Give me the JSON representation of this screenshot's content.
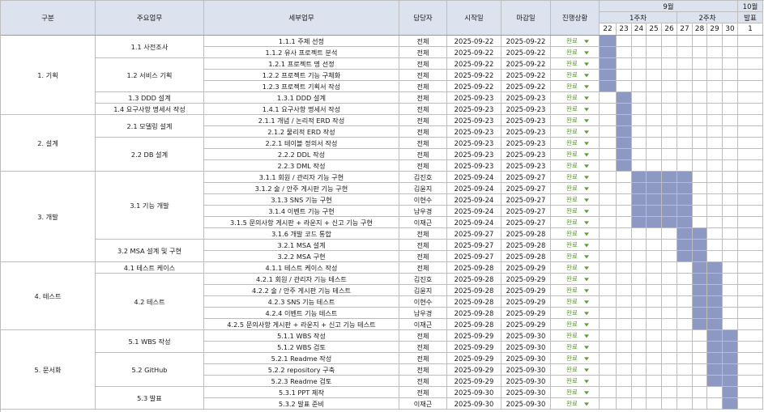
{
  "headers": {
    "category": "구분",
    "main_task": "주요업무",
    "detail_task": "세부업무",
    "owner": "담당자",
    "start": "시작일",
    "end": "마감일",
    "status": "진행상황",
    "month_sep": "9월",
    "month_oct": "10월",
    "week1": "1주차",
    "week2": "2주차",
    "release": "발표"
  },
  "days": [
    "22",
    "23",
    "24",
    "25",
    "26",
    "27",
    "28",
    "29",
    "30",
    "1"
  ],
  "bar_color": "#8e99c3",
  "status_color": "#5a9e2f",
  "categories": [
    {
      "label": "1. 기획",
      "first": 0,
      "count": 7
    },
    {
      "label": "2. 설계",
      "first": 7,
      "count": 5
    },
    {
      "label": "3. 개발",
      "first": 12,
      "count": 8
    },
    {
      "label": "4. 테스트",
      "first": 20,
      "count": 6
    },
    {
      "label": "5. 문서화",
      "first": 26,
      "count": 7
    }
  ],
  "main_tasks": [
    {
      "label": "1.1 사전조사",
      "first": 0,
      "count": 2
    },
    {
      "label": "1.2 서비스 기획",
      "first": 2,
      "count": 3
    },
    {
      "label": "1.3 DDD 설계",
      "first": 5,
      "count": 1
    },
    {
      "label": "1.4 요구사항 명세서 작성",
      "first": 6,
      "count": 1
    },
    {
      "label": "2.1 모델링 설계",
      "first": 7,
      "count": 2
    },
    {
      "label": "2.2 DB 설계",
      "first": 9,
      "count": 3
    },
    {
      "label": "3.1 기능 개발",
      "first": 12,
      "count": 6
    },
    {
      "label": "3.2 MSA 설계 및 구현",
      "first": 18,
      "count": 2
    },
    {
      "label": "4.1 테스트 케이스",
      "first": 20,
      "count": 1
    },
    {
      "label": "4.2 테스트",
      "first": 21,
      "count": 5
    },
    {
      "label": "5.1 WBS 작성",
      "first": 26,
      "count": 2
    },
    {
      "label": "5.2 GitHub",
      "first": 28,
      "count": 3
    },
    {
      "label": "5.3 발표",
      "first": 31,
      "count": 2
    }
  ],
  "rows": [
    {
      "detail": "1.1.1 주제 선정",
      "owner": "전체",
      "start": "2025-09-22",
      "end": "2025-09-22",
      "status": "완료",
      "bar": [
        0,
        0
      ]
    },
    {
      "detail": "1.1.2 유사 프로젝트 분석",
      "owner": "전체",
      "start": "2025-09-22",
      "end": "2025-09-22",
      "status": "완료",
      "bar": [
        0,
        0
      ]
    },
    {
      "detail": "1.2.1 프로젝트 명 선정",
      "owner": "전체",
      "start": "2025-09-22",
      "end": "2025-09-22",
      "status": "완료",
      "bar": [
        0,
        0
      ]
    },
    {
      "detail": "1.2.2 프로젝트 기능 구체화",
      "owner": "전체",
      "start": "2025-09-22",
      "end": "2025-09-22",
      "status": "완료",
      "bar": [
        0,
        0
      ]
    },
    {
      "detail": "1.2.3 프로젝트 기획서 작성",
      "owner": "전체",
      "start": "2025-09-22",
      "end": "2025-09-22",
      "status": "완료",
      "bar": [
        0,
        0
      ]
    },
    {
      "detail": "1.3.1 DDD 설계",
      "owner": "전체",
      "start": "2025-09-23",
      "end": "2025-09-23",
      "status": "완료",
      "bar": [
        1,
        1
      ]
    },
    {
      "detail": "1.4.1 요구사항 명세서 작성",
      "owner": "전체",
      "start": "2025-09-23",
      "end": "2025-09-23",
      "status": "완료",
      "bar": [
        1,
        1
      ]
    },
    {
      "detail": "2.1.1 개념 / 논리적 ERD 작성",
      "owner": "전체",
      "start": "2025-09-23",
      "end": "2025-09-23",
      "status": "완료",
      "bar": [
        1,
        1
      ]
    },
    {
      "detail": "2.1.2 물리적 ERD 작성",
      "owner": "전체",
      "start": "2025-09-23",
      "end": "2025-09-23",
      "status": "완료",
      "bar": [
        1,
        1
      ]
    },
    {
      "detail": "2.2.1 테이블 정의서 작성",
      "owner": "전체",
      "start": "2025-09-23",
      "end": "2025-09-23",
      "status": "완료",
      "bar": [
        1,
        1
      ]
    },
    {
      "detail": "2.2.2 DDL 작성",
      "owner": "전체",
      "start": "2025-09-23",
      "end": "2025-09-23",
      "status": "완료",
      "bar": [
        1,
        1
      ]
    },
    {
      "detail": "2.2.3 DML 작성",
      "owner": "전체",
      "start": "2025-09-23",
      "end": "2025-09-23",
      "status": "완료",
      "bar": [
        1,
        1
      ]
    },
    {
      "detail": "3.1.1 회원 / 관리자 기능 구현",
      "owner": "김진호",
      "start": "2025-09-24",
      "end": "2025-09-27",
      "status": "완료",
      "bar": [
        2,
        5
      ]
    },
    {
      "detail": "3.1.2 술 / 안주 게시판 기능 구현",
      "owner": "김윤지",
      "start": "2025-09-24",
      "end": "2025-09-27",
      "status": "완료",
      "bar": [
        2,
        5
      ]
    },
    {
      "detail": "3.1.3 SNS 기능 구현",
      "owner": "이현수",
      "start": "2025-09-24",
      "end": "2025-09-27",
      "status": "완료",
      "bar": [
        2,
        5
      ]
    },
    {
      "detail": "3.1.4 이벤트 기능 구현",
      "owner": "남우경",
      "start": "2025-09-24",
      "end": "2025-09-27",
      "status": "완료",
      "bar": [
        2,
        5
      ]
    },
    {
      "detail": "3.1.5 문의사항 게시판 + 라운지 + 신고 기능 구현",
      "owner": "이재근",
      "start": "2025-09-24",
      "end": "2025-09-27",
      "status": "완료",
      "bar": [
        2,
        5
      ]
    },
    {
      "detail": "3.1.6 개발 코드 통합",
      "owner": "전체",
      "start": "2025-09-27",
      "end": "2025-09-28",
      "status": "완료",
      "bar": [
        5,
        6
      ]
    },
    {
      "detail": "3.2.1 MSA 설계",
      "owner": "전체",
      "start": "2025-09-27",
      "end": "2025-09-28",
      "status": "완료",
      "bar": [
        5,
        6
      ]
    },
    {
      "detail": "3.2.2 MSA 구현",
      "owner": "전체",
      "start": "2025-09-27",
      "end": "2025-09-28",
      "status": "완료",
      "bar": [
        5,
        6
      ]
    },
    {
      "detail": "4.1.1 테스트 케이스 작성",
      "owner": "전체",
      "start": "2025-09-28",
      "end": "2025-09-29",
      "status": "완료",
      "bar": [
        6,
        7
      ]
    },
    {
      "detail": "4.2.1 회원 / 관리자 기능 테스트",
      "owner": "김진호",
      "start": "2025-09-28",
      "end": "2025-09-29",
      "status": "완료",
      "bar": [
        6,
        7
      ]
    },
    {
      "detail": "4.2.2 술 / 안주 게시판 기능 테스트",
      "owner": "김윤지",
      "start": "2025-09-28",
      "end": "2025-09-29",
      "status": "완료",
      "bar": [
        6,
        7
      ]
    },
    {
      "detail": "4.2.3 SNS 기능 테스트",
      "owner": "이현수",
      "start": "2025-09-28",
      "end": "2025-09-29",
      "status": "완료",
      "bar": [
        6,
        7
      ]
    },
    {
      "detail": "4.2.4 이벤트 기능 테스트",
      "owner": "남우경",
      "start": "2025-09-28",
      "end": "2025-09-29",
      "status": "완료",
      "bar": [
        6,
        7
      ]
    },
    {
      "detail": "4.2.5 문의사항 게시판 + 라운지 + 신고 기능 테스트",
      "owner": "이재근",
      "start": "2025-09-28",
      "end": "2025-09-29",
      "status": "완료",
      "bar": [
        6,
        7
      ]
    },
    {
      "detail": "5.1.1 WBS 작성",
      "owner": "전체",
      "start": "2025-09-29",
      "end": "2025-09-30",
      "status": "완료",
      "bar": [
        7,
        8
      ]
    },
    {
      "detail": "5.1.2 WBS 검토",
      "owner": "전체",
      "start": "2025-09-29",
      "end": "2025-09-30",
      "status": "완료",
      "bar": [
        7,
        8
      ]
    },
    {
      "detail": "5.2.1 Readme 작성",
      "owner": "전체",
      "start": "2025-09-29",
      "end": "2025-09-30",
      "status": "완료",
      "bar": [
        7,
        8
      ]
    },
    {
      "detail": "5.2.2 repository 구축",
      "owner": "전체",
      "start": "2025-09-29",
      "end": "2025-09-30",
      "status": "완료",
      "bar": [
        7,
        8
      ]
    },
    {
      "detail": "5.2.3 Readme 검토",
      "owner": "전체",
      "start": "2025-09-29",
      "end": "2025-09-30",
      "status": "완료",
      "bar": [
        7,
        8
      ]
    },
    {
      "detail": "5.3.1 PPT 제작",
      "owner": "전체",
      "start": "2025-09-30",
      "end": "2025-09-30",
      "status": "완료",
      "bar": [
        8,
        8
      ]
    },
    {
      "detail": "5.3.2 발표 준비",
      "owner": "이재근",
      "start": "2025-09-30",
      "end": "2025-09-30",
      "status": "완료",
      "bar": [
        8,
        8
      ]
    }
  ]
}
